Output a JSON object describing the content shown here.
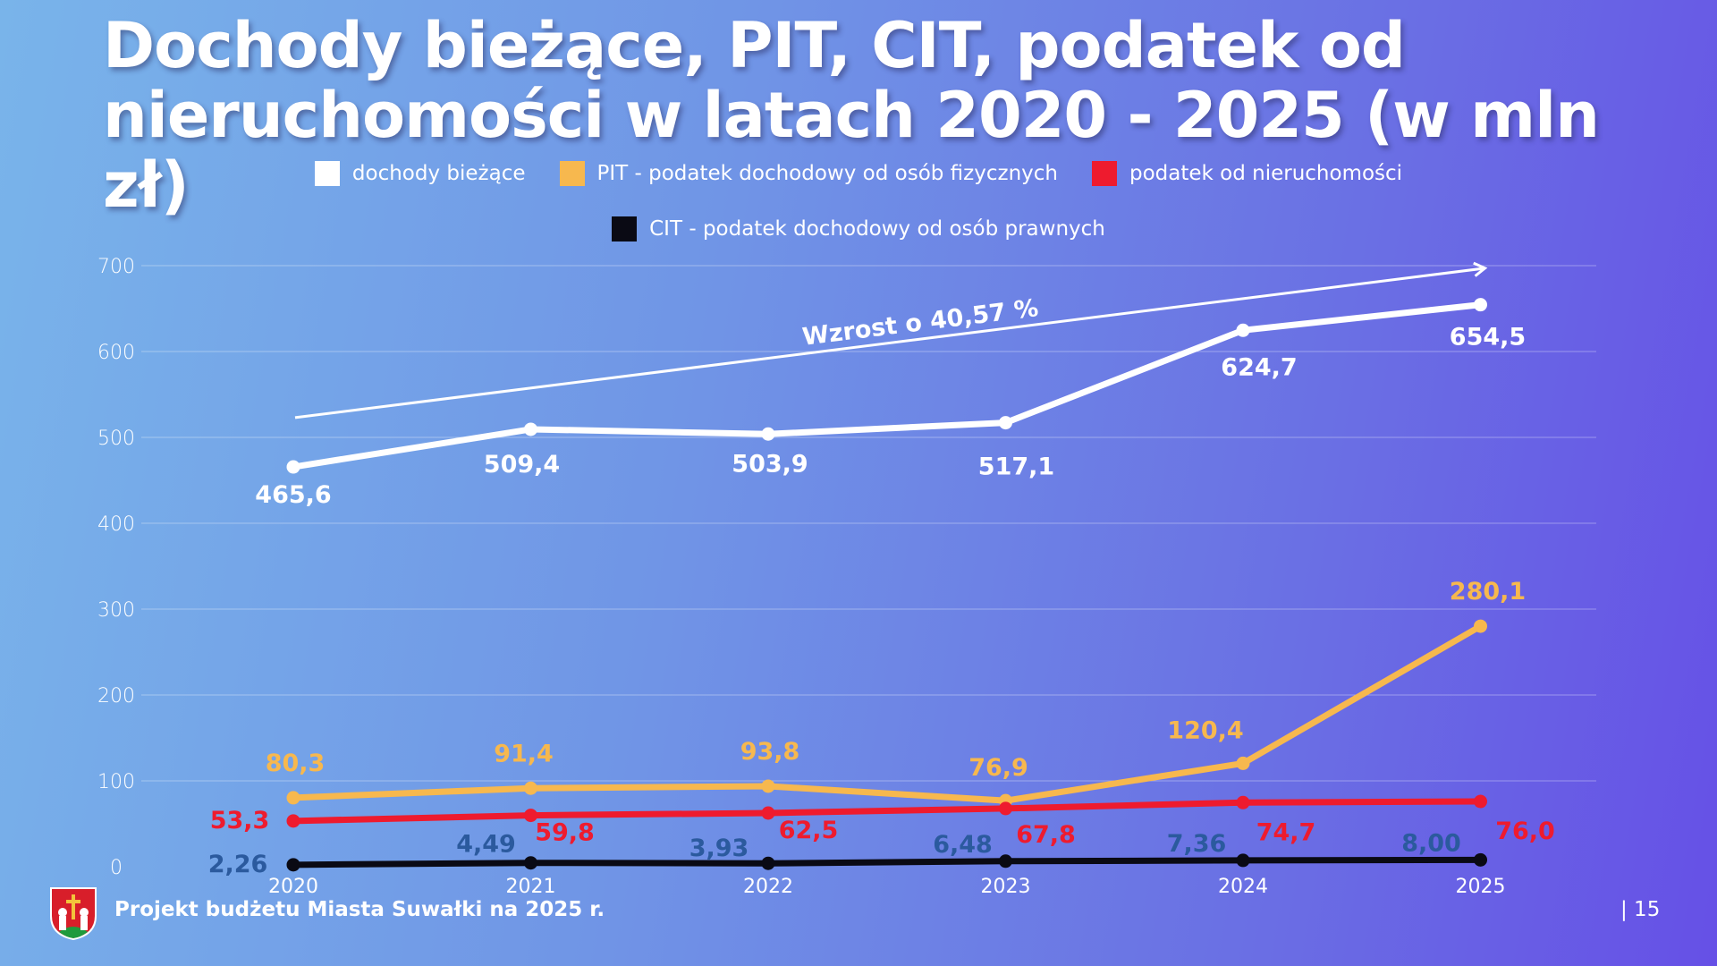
{
  "title_line1": "Dochody bieżące, PIT, CIT, podatek od",
  "title_line2": "nieruchomości w latach 2020 - 2025 (w mln zł)",
  "footer": {
    "text": "Projekt budżetu Miasta Suwałki na 2025 r.",
    "page": "| 15",
    "logo_icon": "suwalki-crest-icon"
  },
  "chart_data": {
    "type": "line",
    "title": "Dochody bieżące, PIT, CIT, podatek od nieruchomości w latach 2020 - 2025 (w mln zł)",
    "x": [
      "2020",
      "2021",
      "2022",
      "2023",
      "2024",
      "2025"
    ],
    "ylim": [
      0,
      700
    ],
    "yticks": [
      "0",
      "100",
      "200",
      "300",
      "400",
      "500",
      "600",
      "700"
    ],
    "grid": true,
    "legend_position": "top",
    "series": [
      {
        "name": "dochody bieżące",
        "color": "#ffffff",
        "values": [
          465.6,
          509.4,
          503.9,
          517.1,
          624.7,
          654.5
        ],
        "labels": [
          "465,6",
          "509,4",
          "503,9",
          "517,1",
          "624,7",
          "654,5"
        ]
      },
      {
        "name": "PIT - podatek dochodowy od osób fizycznych",
        "color": "#f7b84e",
        "values": [
          80.3,
          91.4,
          93.8,
          76.9,
          120.4,
          280.1
        ],
        "labels": [
          "80,3",
          "91,4",
          "93,8",
          "76,9",
          "120,4",
          "280,1"
        ]
      },
      {
        "name": "podatek od nieruchomości",
        "color": "#ee1b2e",
        "values": [
          53.3,
          59.8,
          62.5,
          67.8,
          74.7,
          76.0
        ],
        "labels": [
          "53,3",
          "59,8",
          "62,5",
          "67,8",
          "74,7",
          "76,0"
        ]
      },
      {
        "name": "CIT - podatek dochodowy od osób prawnych",
        "color": "#0a0a14",
        "label_color": "#2b5a9e",
        "values": [
          2.26,
          4.49,
          3.93,
          6.48,
          7.36,
          8.0
        ],
        "labels": [
          "2,26",
          "4,49",
          "3,93",
          "6,48",
          "7,36",
          "8,00"
        ]
      }
    ],
    "annotation": {
      "text": "Wzrost o 40,57 %",
      "from": [
        "2020",
        523
      ],
      "to": [
        "2025",
        697
      ]
    }
  }
}
